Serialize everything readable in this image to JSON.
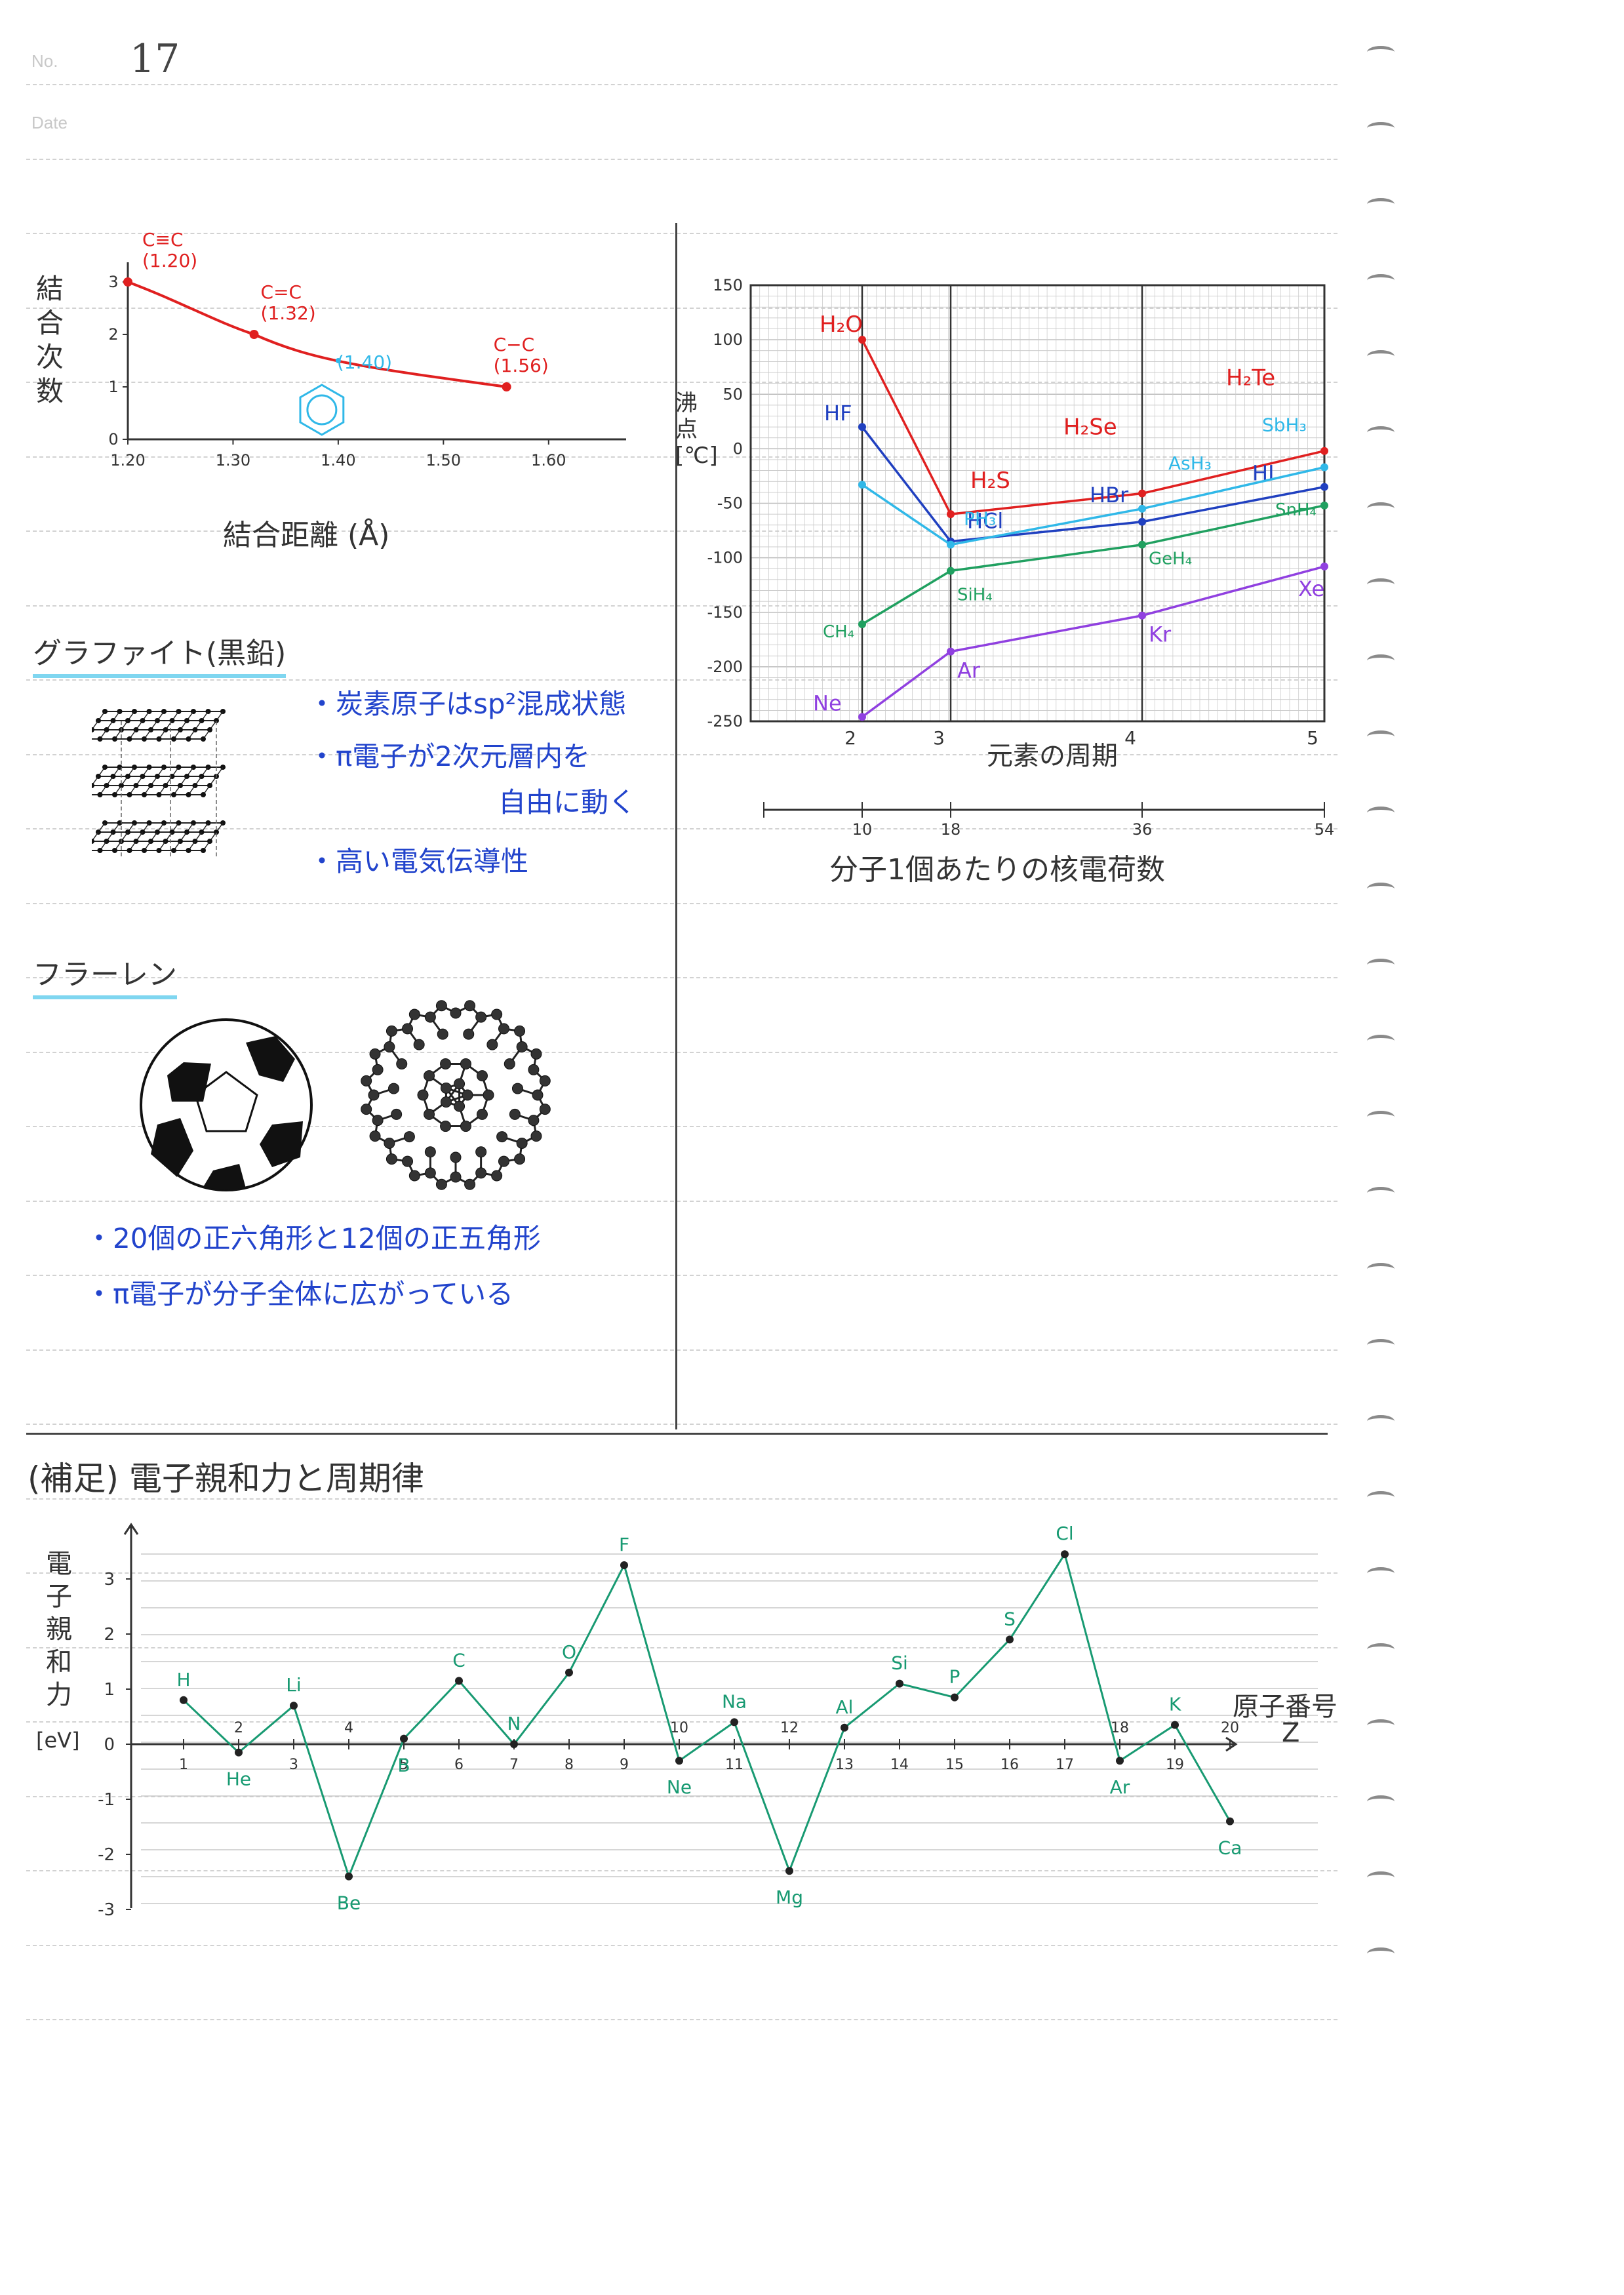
{
  "header": {
    "no_label": "No.",
    "no_value": "17",
    "date_label": "Date"
  },
  "bond_chart": {
    "ylabel": "結合次数",
    "xlabel": "結合距離 (Å)",
    "x_ticks": [
      "1.20",
      "1.30",
      "1.40",
      "1.50",
      "1.60"
    ],
    "y_ticks": [
      "0",
      "1",
      "2",
      "3"
    ],
    "points": [
      {
        "name": "C≡C",
        "value": "(1.20)"
      },
      {
        "name": "C=C",
        "value": "(1.32)"
      },
      {
        "name": "benzene",
        "value": "(1.40)"
      },
      {
        "name": "C−C",
        "value": "(1.56)"
      }
    ]
  },
  "graphite": {
    "title": "グラファイト(黒鉛)",
    "bullets": [
      "・炭素原子はsp²混成状態",
      "・π電子が2次元層内を",
      "自由に動く",
      "・高い電気伝導性"
    ]
  },
  "fullerene": {
    "title": "フラーレン",
    "bullets": [
      "・20個の正六角形と12個の正五角形",
      "・π電子が分子全体に広がっている"
    ]
  },
  "chart_data": [
    {
      "type": "line",
      "title": "",
      "xlabel": "結合距離 (Å)",
      "ylabel": "結合次数",
      "xlim": [
        1.2,
        1.65
      ],
      "ylim": [
        0,
        3
      ],
      "series": [
        {
          "x": [
            1.2,
            1.32,
            1.4,
            1.56
          ],
          "y": [
            3,
            2,
            1.5,
            1
          ]
        }
      ],
      "grid": false
    },
    {
      "type": "line",
      "title": "",
      "xlabel": "元素の周期",
      "ylabel": "沸点 [℃]",
      "secondary_xlabel": "分子1個あたりの核電荷数",
      "x_categories": [
        "2",
        "3",
        "4",
        "5"
      ],
      "secondary_x_ticks": [
        "10",
        "18",
        "36",
        "54"
      ],
      "y_ticks": [
        "150",
        "100",
        "50",
        "0",
        "-50",
        "-100",
        "-150",
        "-200",
        "-250"
      ],
      "ylim": [
        -250,
        150
      ],
      "grid": true,
      "series": [
        {
          "labels": [
            "H₂O",
            "H₂S",
            "H₂Se",
            "H₂Te"
          ],
          "values": [
            100,
            -60,
            -41,
            -2
          ],
          "color": "#e02020"
        },
        {
          "labels": [
            "HF",
            "HCl",
            "HBr",
            "HI"
          ],
          "values": [
            20,
            -85,
            -67,
            -35
          ],
          "color": "#2040c0"
        },
        {
          "labels": [
            "",
            "PH₃",
            "AsH₃",
            "SbH₃"
          ],
          "values": [
            -33,
            -88,
            -55,
            -17
          ],
          "color": "#30b8e8"
        },
        {
          "labels": [
            "CH₄",
            "SiH₄",
            "GeH₄",
            "SnH₄"
          ],
          "values": [
            -161,
            -112,
            -88,
            -52
          ],
          "color": "#20a060"
        },
        {
          "labels": [
            "Ne",
            "Ar",
            "Kr",
            "Xe"
          ],
          "values": [
            -246,
            -186,
            -153,
            -108
          ],
          "color": "#9040e0"
        }
      ]
    },
    {
      "type": "line",
      "title": "(補足) 電子親和力と周期律",
      "xlabel": "原子番号 Z",
      "ylabel": "電子親和力 [eV]",
      "ylim": [
        -3,
        3.5
      ],
      "y_ticks": [
        "3",
        "2",
        "1",
        "0",
        "-1",
        "-2",
        "-3"
      ],
      "x_ticks": [
        "1",
        "2",
        "3",
        "4",
        "5",
        "6",
        "7",
        "8",
        "9",
        "10",
        "11",
        "12",
        "13",
        "14",
        "15",
        "16",
        "17",
        "18",
        "19",
        "20"
      ],
      "grid": true,
      "series": [
        {
          "color": "#189a72",
          "labels": [
            "H",
            "He",
            "Li",
            "Be",
            "B",
            "C",
            "N",
            "O",
            "F",
            "Ne",
            "Na",
            "Mg",
            "Al",
            "Si",
            "P",
            "S",
            "Cl",
            "Ar",
            "K",
            "Ca"
          ],
          "x": [
            1,
            2,
            3,
            4,
            5,
            6,
            7,
            8,
            9,
            10,
            11,
            12,
            13,
            14,
            15,
            16,
            17,
            18,
            19,
            20
          ],
          "y": [
            0.8,
            -0.15,
            0.7,
            -2.4,
            0.1,
            1.15,
            0.0,
            1.3,
            3.25,
            -0.3,
            0.4,
            -2.3,
            0.3,
            1.1,
            0.85,
            1.9,
            3.45,
            -0.3,
            0.35,
            -1.4
          ]
        }
      ]
    }
  ],
  "boiling_chart": {
    "ylabel": "沸点[℃]",
    "xlabel": "元素の周期",
    "secondary_xlabel": "分子1個あたりの核電荷数"
  },
  "affinity_chart": {
    "title": "(補足) 電子親和力と周期律",
    "ylabel": "電子親和力",
    "unit": "[eV]",
    "xlabel": "原子番号",
    "z_label": "Z"
  },
  "colors": {
    "red": "#e02020",
    "blue": "#2040c0",
    "cyan": "#30b8e8",
    "green": "#20a060",
    "purple": "#9040e0",
    "teal": "#189a72",
    "highlight": "#7fd6f0"
  }
}
